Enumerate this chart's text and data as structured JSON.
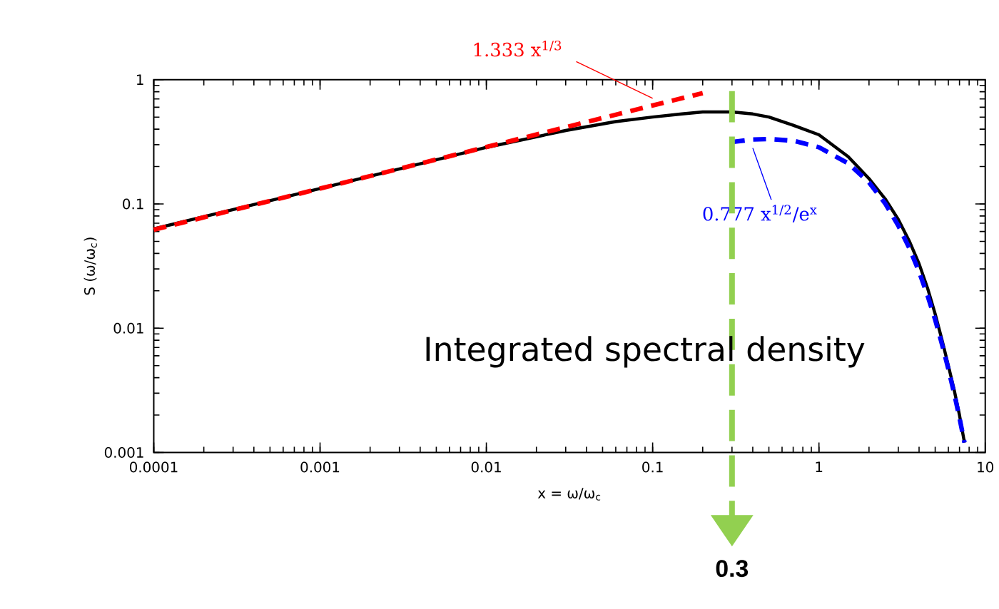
{
  "chart_data": {
    "type": "line",
    "xlabel": "x = ω/ω$_{c}$",
    "ylabel": "S (ω/ω$_{c}$)",
    "log": "xy",
    "xlim": [
      0.0001,
      10
    ],
    "ylim": [
      0.001,
      1
    ],
    "xticks": [
      0.0001,
      0.001,
      0.01,
      0.1,
      1,
      10
    ],
    "yticks": [
      0.001,
      0.01,
      0.1,
      1
    ],
    "series": [
      {
        "color": "#000000",
        "line_style": "solid",
        "x": [
          0.0001,
          0.001,
          0.01,
          0.03,
          0.06,
          0.1,
          0.15,
          0.2,
          0.3,
          0.4,
          0.5,
          0.7,
          1,
          1.5,
          2,
          2.5,
          3,
          3.5,
          4,
          4.5,
          5,
          5.5,
          6,
          6.5,
          7,
          7.5
        ],
        "values": [
          0.063,
          0.133,
          0.285,
          0.39,
          0.46,
          0.5,
          0.53,
          0.55,
          0.55,
          0.53,
          0.5,
          0.43,
          0.36,
          0.24,
          0.16,
          0.11,
          0.075,
          0.05,
          0.033,
          0.021,
          0.013,
          0.008,
          0.005,
          0.0032,
          0.002,
          0.0012
        ]
      },
      {
        "name": "1.333 x$^{1/3}$",
        "color": "#ff0000",
        "line_style": "dashed",
        "x": [
          0.0001,
          0.001,
          0.01,
          0.1,
          0.2
        ],
        "values": [
          0.062,
          0.133,
          0.287,
          0.62,
          0.78
        ]
      },
      {
        "name": "0.777 x$^{1/2}$/e$^{x}$",
        "color": "#0000ff",
        "line_style": "dashed",
        "x": [
          0.3,
          0.4,
          0.5,
          0.7,
          1,
          1.5,
          2,
          2.5,
          3,
          3.5,
          4,
          4.5,
          5,
          5.5,
          6,
          6.5,
          7,
          7.5
        ],
        "values": [
          0.315,
          0.33,
          0.333,
          0.323,
          0.286,
          0.212,
          0.149,
          0.101,
          0.067,
          0.044,
          0.0285,
          0.0183,
          0.0117,
          0.0074,
          0.0047,
          0.003,
          0.0019,
          0.0012
        ]
      }
    ],
    "ref_lines": [
      {
        "axis": "x",
        "value": 0.3,
        "label": "0.3",
        "color": "#92d050",
        "line_style": "dashed"
      }
    ],
    "annotations": [
      "Integrated spectral density"
    ]
  }
}
